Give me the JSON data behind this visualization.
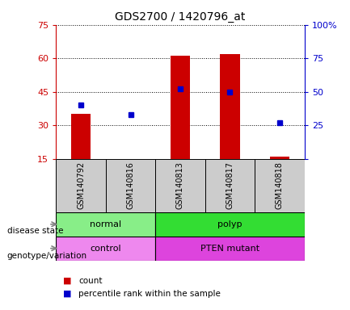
{
  "title": "GDS2700 / 1420796_at",
  "samples": [
    "GSM140792",
    "GSM140816",
    "GSM140813",
    "GSM140817",
    "GSM140818"
  ],
  "counts": [
    35,
    15,
    61,
    62,
    16
  ],
  "percentiles": [
    40,
    33,
    52,
    50,
    27
  ],
  "ylim_left": [
    15,
    75
  ],
  "ylim_right": [
    0,
    100
  ],
  "yticks_left": [
    15,
    30,
    45,
    60,
    75
  ],
  "yticks_right": [
    0,
    25,
    50,
    75,
    100
  ],
  "bar_color": "#cc0000",
  "dot_color": "#0000cc",
  "bar_base": 15,
  "disease_state": [
    {
      "label": "normal",
      "samples": [
        0,
        1
      ],
      "color": "#88ee88"
    },
    {
      "label": "polyp",
      "samples": [
        2,
        3,
        4
      ],
      "color": "#33dd33"
    }
  ],
  "genotype": [
    {
      "label": "control",
      "samples": [
        0,
        1
      ],
      "color": "#ee88ee"
    },
    {
      "label": "PTEN mutant",
      "samples": [
        2,
        3,
        4
      ],
      "color": "#dd44dd"
    }
  ],
  "disease_label": "disease state",
  "genotype_label": "genotype/variation",
  "legend_count": "count",
  "legend_pct": "percentile rank within the sample",
  "background_color": "#ffffff",
  "sample_bg": "#cccccc",
  "left_axis_color": "#cc0000",
  "right_axis_color": "#0000cc"
}
